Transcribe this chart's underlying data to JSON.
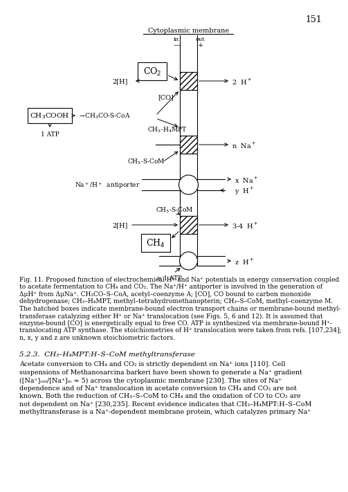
{
  "page_number": "151",
  "title_membrane": "Cytoplasmic membrane",
  "bg_color": "#ffffff",
  "fig_caption_lines": [
    "Fig. 11. Proposed function of electrochemical H⁺ and Na⁺ potentials in energy conservation coupled",
    "to acetate fermentation to CH₄ and CO₂. The Na⁺/H⁺ antiporter is involved in the generation of",
    "ΔμH⁺ from ΔμNa⁺. CH₃CO–S–CoA, acetyl–coenzyme A; [CO], CO bound to carbon monoxide",
    "dehydrogenase; CH₃–H₄MPT, methyl–tetrahydromethanopterin; CH₃–S–CoM, methyl–coenzyme M.",
    "The hatched boxes indicate membrane-bound electron transport chains or membrane-bound methyl-",
    "transferase catalyzing either H⁺ or Na⁺ translocation (see Figs. 5, 6 and 12). It is assumed that",
    "enzyme-bound [CO] is energetically equal to free CO. ATP is synthesized via membrane-bound H⁺-",
    "translocating ATP synthase. The stoichiometries of H⁺ translocation were taken from refs. [107,234];",
    "n, x, y and z are unknown stoichiometric factors."
  ],
  "section_title": "5.2.3.  CH₃–H₄MPT:H–S–CoM methyltransferase",
  "section_body_lines": [
    "Acetate conversion to CH₄ and CO₂ is strictly dependent on Na⁺ ions [110]. Cell",
    "suspensions of Methanosarcina barkeri have been shown to generate a Na⁺ gradient",
    "([Na⁺]ₒᵤₜ/[Na⁺]ᵢₙ ≈ 5) across the cytoplasmic membrane [230]. The sites of Na⁺",
    "dependence and of Na⁺ translocation in acetate conversion to CH₄ and CO₂ are not",
    "known. Both the reduction of CH₃–S–CoM to CH₄ and the oxidation of CO to CO₂ are",
    "not dependent on Na⁺ [230,235]. Recent evidence indicates that CH₃–H₄MPT:H–S–CoM",
    "methyltransferase is a Na⁺-dependent membrane protein, which catalyzes primary Na⁺"
  ]
}
